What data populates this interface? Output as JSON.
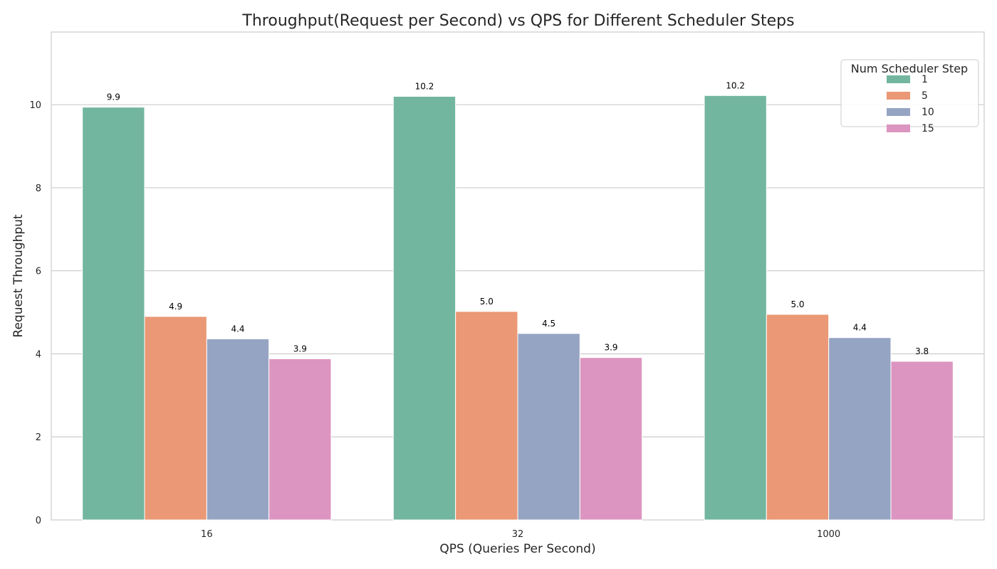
{
  "chart_data": {
    "type": "bar",
    "title": "Throughput(Request per Second) vs QPS for Different Scheduler Steps",
    "xlabel": "QPS (Queries Per Second)",
    "ylabel": "Request Throughput",
    "categories": [
      "16",
      "32",
      "1000"
    ],
    "ylim": [
      0,
      11.75
    ],
    "yticks": [
      0,
      2,
      4,
      6,
      8,
      10
    ],
    "grid": "horizontal",
    "legend": {
      "title": "Num Scheduler Step",
      "placement": "top-right"
    },
    "series": [
      {
        "name": "1",
        "color": "#73b6a0",
        "values": [
          9.94,
          10.2,
          10.22
        ],
        "labels": [
          "9.9",
          "10.2",
          "10.2"
        ]
      },
      {
        "name": "5",
        "color": "#ea9875",
        "values": [
          4.9,
          5.02,
          4.95
        ],
        "labels": [
          "4.9",
          "5.0",
          "5.0"
        ]
      },
      {
        "name": "10",
        "color": "#96a4c3",
        "values": [
          4.36,
          4.49,
          4.39
        ],
        "labels": [
          "4.4",
          "4.5",
          "4.4"
        ]
      },
      {
        "name": "15",
        "color": "#dc95c0",
        "values": [
          3.88,
          3.91,
          3.82
        ],
        "labels": [
          "3.9",
          "3.9",
          "3.8"
        ]
      }
    ]
  }
}
